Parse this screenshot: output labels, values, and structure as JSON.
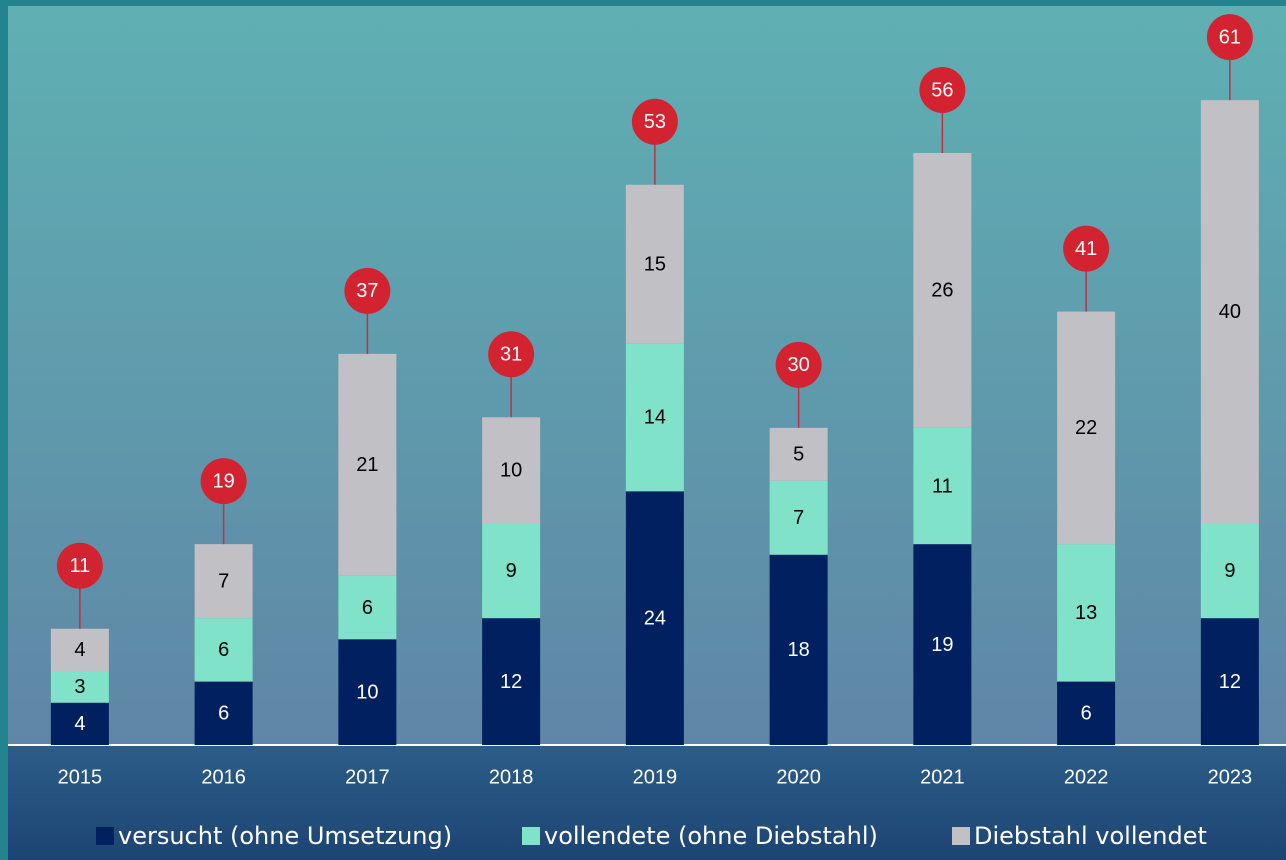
{
  "chart_data": {
    "type": "stacked_bar",
    "categories": [
      "2015",
      "2016",
      "2017",
      "2018",
      "2019",
      "2020",
      "2021",
      "2022",
      "2023"
    ],
    "series": [
      {
        "name": "versucht (ohne Umsetzung)",
        "color": "#002060",
        "values": [
          4,
          6,
          10,
          12,
          24,
          18,
          19,
          6,
          12
        ]
      },
      {
        "name": "vollendete (ohne Diebstahl)",
        "color": "#80e2c9",
        "values": [
          3,
          6,
          6,
          9,
          14,
          7,
          11,
          13,
          9
        ]
      },
      {
        "name": "Diebstahl vollendet",
        "color": "#c0c0c5",
        "values": [
          4,
          7,
          21,
          10,
          15,
          5,
          26,
          22,
          40
        ]
      }
    ],
    "totals": [
      11,
      19,
      37,
      31,
      53,
      30,
      56,
      41,
      61
    ],
    "total_color": "#d42330",
    "ylim": [
      0,
      70
    ],
    "legend": "bottom"
  }
}
